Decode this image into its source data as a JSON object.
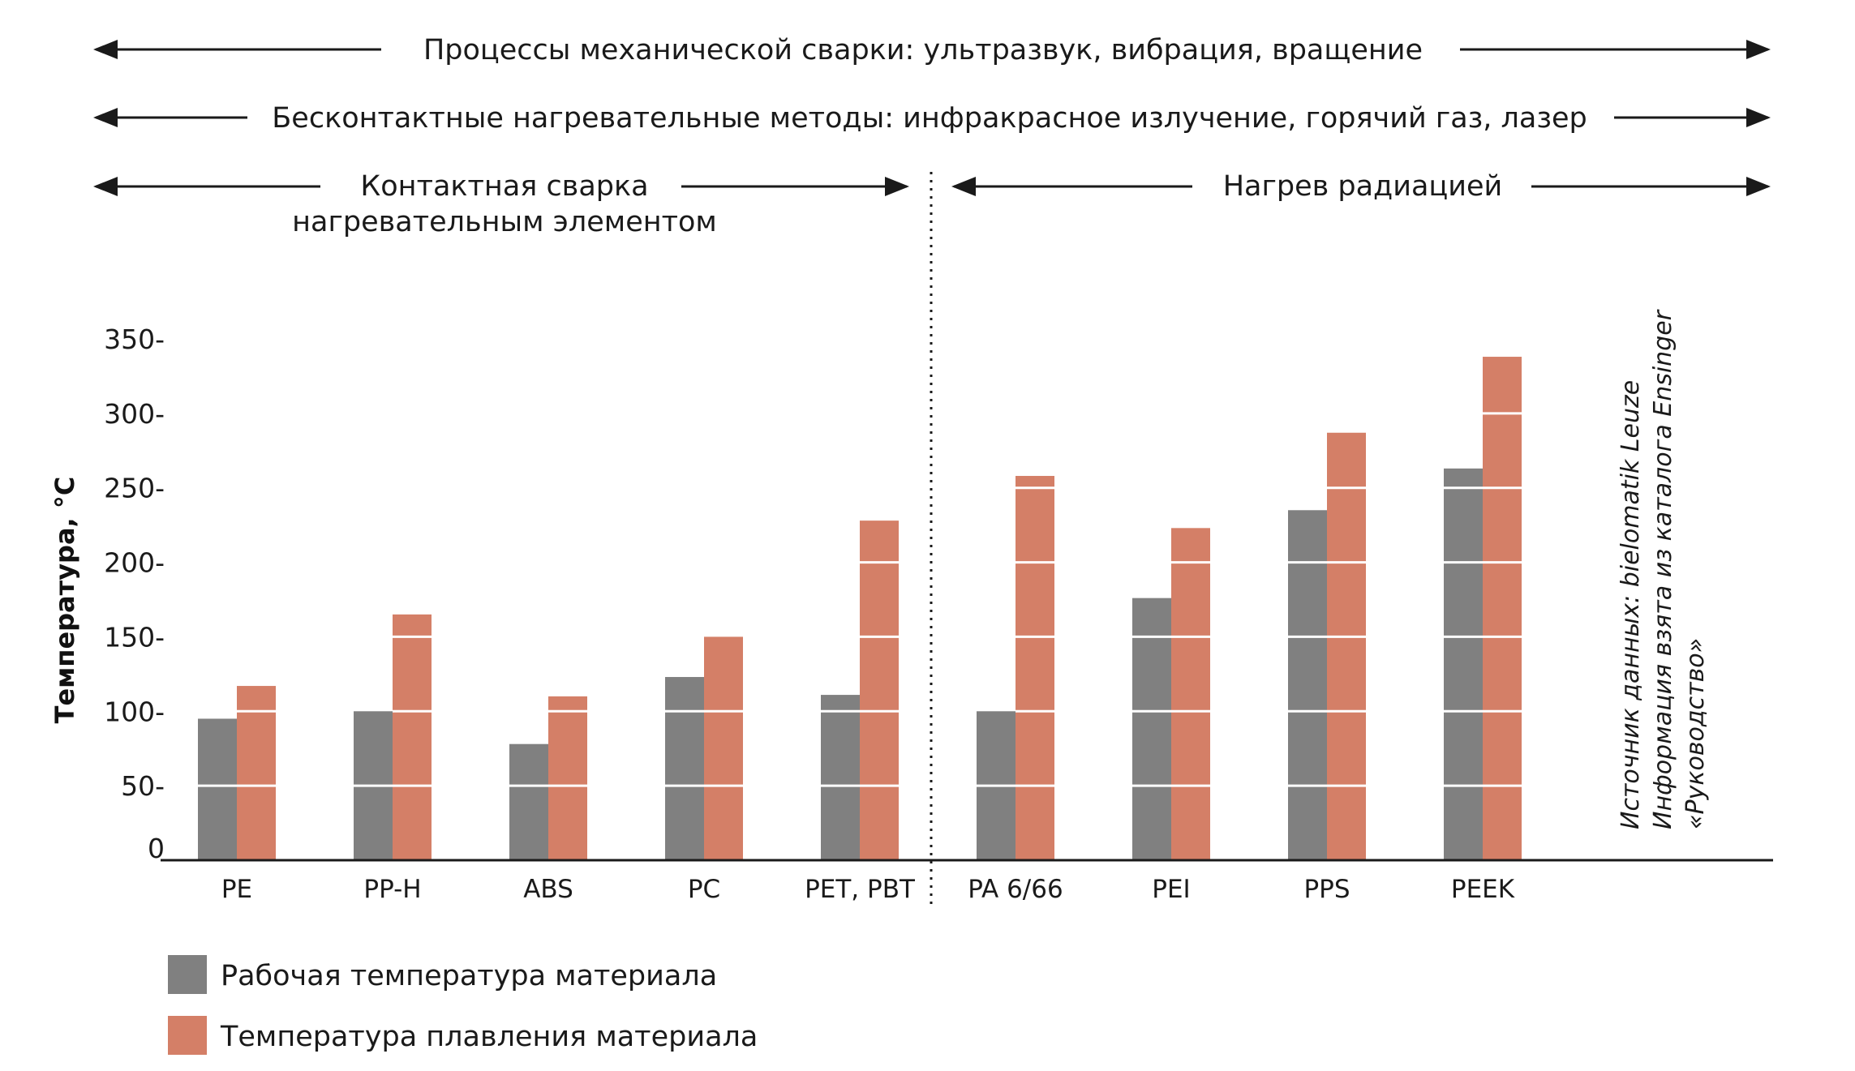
{
  "chart_data": {
    "type": "bar",
    "ylabel": "Температура, °C",
    "ylim": [
      0,
      350
    ],
    "yticks": [
      {
        "value": 0,
        "label": "0"
      },
      {
        "value": 50,
        "label": "50-"
      },
      {
        "value": 100,
        "label": "100-"
      },
      {
        "value": 150,
        "label": "150-"
      },
      {
        "value": 200,
        "label": "200-"
      },
      {
        "value": 250,
        "label": "250-"
      },
      {
        "value": 300,
        "label": "300-"
      },
      {
        "value": 350,
        "label": "350-"
      }
    ],
    "grid": "white lines across bars at each tick",
    "categories": [
      "PE",
      "PP-H",
      "ABS",
      "PC",
      "PET, PBT",
      "PA 6/66",
      "PEI",
      "PPS",
      "PEEK"
    ],
    "series": [
      {
        "name": "Рабочая температура материала",
        "color": "#808080",
        "values": [
          95,
          100,
          78,
          123,
          111,
          100,
          176,
          235,
          263
        ]
      },
      {
        "name": "Температура плавления материала",
        "color": "#d47f67",
        "values": [
          117,
          165,
          110,
          150,
          228,
          258,
          223,
          287,
          338
        ]
      }
    ],
    "legend_placement": "bottom-left",
    "process_ranges": [
      {
        "label": "Процессы механической сварки: ультразвук, вибрация, вращение"
      },
      {
        "label": "Бесконтактные нагревательные методы: инфракрасное излучение, горячий газ, лазер"
      },
      {
        "label_line1": "Контактная сварка",
        "label_line2": "нагревательным элементом"
      },
      {
        "label": "Нагрев радиацией"
      }
    ],
    "source_note": {
      "line1": "Источник данных: bielomatik Leuze",
      "line2": "Информация взята из каталога Ensinger",
      "line3": "«Руководство»"
    }
  }
}
